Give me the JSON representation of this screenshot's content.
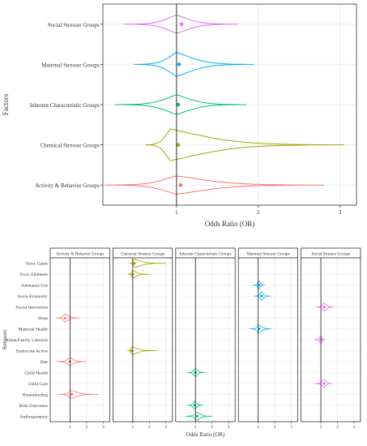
{
  "colors": {
    "activity": "#F8766D",
    "chemical": "#A3A500",
    "inherent": "#00BF7D",
    "maternal": "#00B0F6",
    "social": "#E76BF3",
    "refline": "#333333",
    "grid": "#ebebeb"
  },
  "chart_data": [
    {
      "type": "violin",
      "ylabel": "Factors",
      "xlabel": "Odds Ratio (OR)",
      "xlim": [
        0.1,
        3.2
      ],
      "xticks": [
        "1",
        "2",
        "3"
      ],
      "reference_line": 1,
      "grid": true,
      "categories": [
        "Social Stressor Groups",
        "Maternal Stressor Groups",
        "Inherent Characteristic Groups",
        "Chemical Stressor Groups",
        "Activity & Behavior Groups"
      ],
      "series": [
        {
          "category": "Social Stressor Groups",
          "color_key": "social",
          "mean": 1.06,
          "min": 0.35,
          "max": 1.75,
          "peak": 1.0,
          "width": 0.42
        },
        {
          "category": "Maternal Stressor Groups",
          "color_key": "maternal",
          "mean": 1.03,
          "min": 0.48,
          "max": 1.95,
          "peak": 1.0,
          "width": 0.55
        },
        {
          "category": "Inherent Characteristic Groups",
          "color_key": "inherent",
          "mean": 1.02,
          "min": 0.25,
          "max": 1.85,
          "peak": 1.0,
          "width": 0.45
        },
        {
          "category": "Chemical Stressor Groups",
          "color_key": "chemical",
          "mean": 1.02,
          "min": 0.62,
          "max": 3.05,
          "peak": 0.92,
          "width": 0.72
        },
        {
          "category": "Activity & Behavior Groups",
          "color_key": "activity",
          "mean": 1.05,
          "min": 0.12,
          "max": 2.8,
          "peak": 1.0,
          "width": 0.42
        }
      ]
    },
    {
      "type": "faceted-violin",
      "ylabel": "Stressors",
      "xlabel": "Odds Ratio (OR)",
      "xlim": [
        0,
        3.2
      ],
      "xticks": [
        "1",
        "2",
        "3"
      ],
      "reference_line": 1,
      "grid": true,
      "facets": [
        {
          "title": "Activity & Behavior Groups",
          "color_key": "activity"
        },
        {
          "title": "Chemical Stressor Groups",
          "color_key": "chemical"
        },
        {
          "title": "Inherent Characteristic Groups",
          "color_key": "inherent"
        },
        {
          "title": "Maternal Stressor Groups",
          "color_key": "maternal"
        },
        {
          "title": "Social Stressor Groups",
          "color_key": "social"
        }
      ],
      "categories": [
        "Toxic Gases",
        "Toxic Elements",
        "Substance Use",
        "Socio-Economic",
        "Social Interaction",
        "Sleep",
        "Maternal Health",
        "Home/Family Lifestyle",
        "Endocrine Active",
        "Diet",
        "Child Health",
        "Child Care",
        "Breastfeeding",
        "Birth Outcomes",
        "Anthropometry"
      ],
      "items": [
        {
          "facet": 1,
          "category": "Toxic Gases",
          "mean": 1.1,
          "min": 0.8,
          "max": 3.0
        },
        {
          "facet": 1,
          "category": "Toxic Elements",
          "mean": 1.0,
          "min": 0.7,
          "max": 2.0
        },
        {
          "facet": 3,
          "category": "Substance Use",
          "mean": 1.05,
          "min": 0.7,
          "max": 1.4
        },
        {
          "facet": 3,
          "category": "Socio-Economic",
          "mean": 1.2,
          "min": 0.75,
          "max": 1.8
        },
        {
          "facet": 4,
          "category": "Social Interaction",
          "mean": 1.2,
          "min": 0.7,
          "max": 1.8
        },
        {
          "facet": 0,
          "category": "Sleep",
          "mean": 0.7,
          "min": 0.2,
          "max": 1.6
        },
        {
          "facet": 3,
          "category": "Maternal Health",
          "mean": 1.05,
          "min": 0.5,
          "max": 1.8
        },
        {
          "facet": 4,
          "category": "Home/Family Lifestyle",
          "mean": 1.0,
          "min": 0.6,
          "max": 1.3
        },
        {
          "facet": 1,
          "category": "Endocrine Active",
          "mean": 0.95,
          "min": 0.7,
          "max": 2.5
        },
        {
          "facet": 0,
          "category": "Diet",
          "mean": 1.0,
          "min": 0.2,
          "max": 2.0
        },
        {
          "facet": 2,
          "category": "Child Health",
          "mean": 1.0,
          "min": 0.5,
          "max": 1.6
        },
        {
          "facet": 4,
          "category": "Child Care",
          "mean": 1.2,
          "min": 0.6,
          "max": 1.7
        },
        {
          "facet": 0,
          "category": "Breastfeeding",
          "mean": 1.1,
          "min": 0.3,
          "max": 2.7
        },
        {
          "facet": 2,
          "category": "Birth Outcomes",
          "mean": 0.95,
          "min": 0.5,
          "max": 1.5
        },
        {
          "facet": 2,
          "category": "Anthropometry",
          "mean": 1.1,
          "min": 0.4,
          "max": 2.0
        }
      ]
    }
  ]
}
